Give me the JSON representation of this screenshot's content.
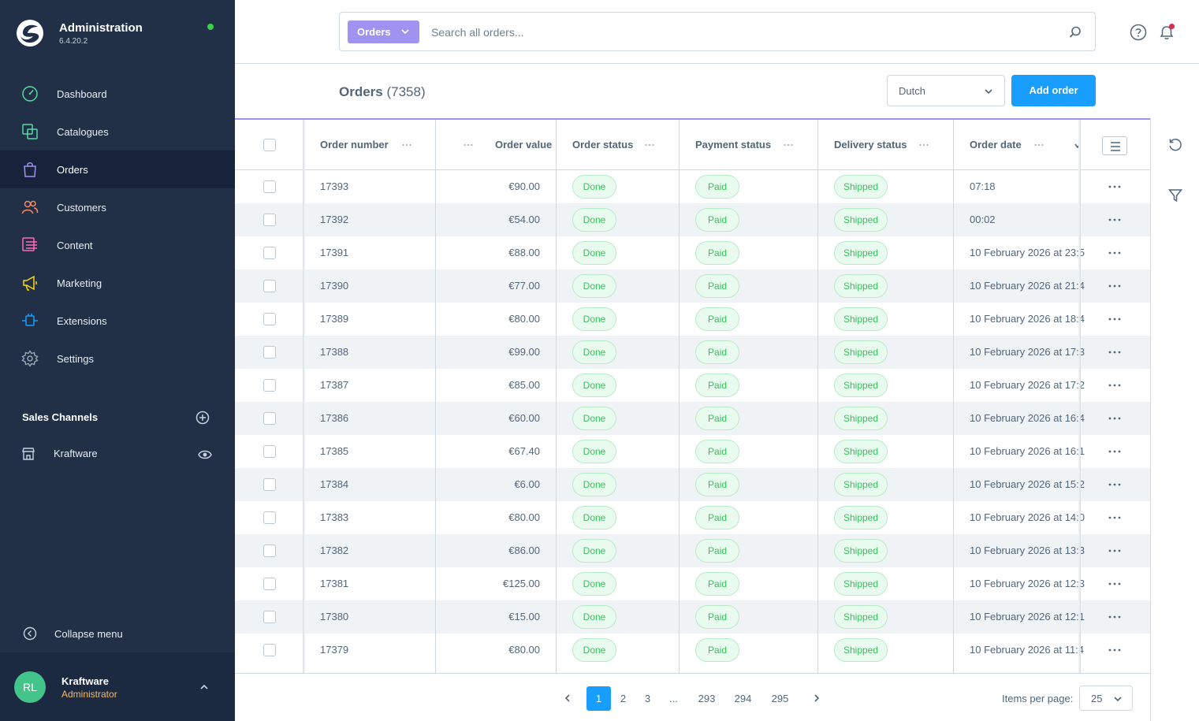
{
  "app": {
    "title": "Administration",
    "version": "6.4.20.2"
  },
  "nav": {
    "items": [
      {
        "label": "Dashboard",
        "icon": "dashboard-icon",
        "color": "#57d9a3"
      },
      {
        "label": "Catalogues",
        "icon": "catalogues-icon",
        "color": "#57d9a3"
      },
      {
        "label": "Orders",
        "icon": "orders-icon",
        "color": "#a092f0"
      },
      {
        "label": "Customers",
        "icon": "customers-icon",
        "color": "#f88962"
      },
      {
        "label": "Content",
        "icon": "content-icon",
        "color": "#ff68b4"
      },
      {
        "label": "Marketing",
        "icon": "marketing-icon",
        "color": "#ffd700"
      },
      {
        "label": "Extensions",
        "icon": "extensions-icon",
        "color": "#189eff"
      },
      {
        "label": "Settings",
        "icon": "settings-icon",
        "color": "#9aa8b5"
      }
    ],
    "active_index": 2
  },
  "sales_channels": {
    "header": "Sales Channels",
    "items": [
      {
        "label": "Kraftware"
      }
    ]
  },
  "collapse_label": "Collapse menu",
  "user": {
    "initials": "RL",
    "name": "Kraftware",
    "role": "Administrator"
  },
  "search": {
    "type_label": "Orders",
    "placeholder": "Search all orders...",
    "value": ""
  },
  "page": {
    "title": "Orders",
    "count": "(7358)"
  },
  "language_select": {
    "value": "Dutch"
  },
  "add_order_label": "Add order",
  "table": {
    "columns": [
      "Order number",
      "Order value",
      "Order status",
      "Payment status",
      "Delivery status",
      "Order date"
    ],
    "rows": [
      {
        "number": "17393",
        "value": "€90.00",
        "order_status": "Done",
        "payment_status": "Paid",
        "delivery_status": "Shipped",
        "date": "07:18"
      },
      {
        "number": "17392",
        "value": "€54.00",
        "order_status": "Done",
        "payment_status": "Paid",
        "delivery_status": "Shipped",
        "date": "00:02"
      },
      {
        "number": "17391",
        "value": "€88.00",
        "order_status": "Done",
        "payment_status": "Paid",
        "delivery_status": "Shipped",
        "date": "10 February 2026 at 23:5"
      },
      {
        "number": "17390",
        "value": "€77.00",
        "order_status": "Done",
        "payment_status": "Paid",
        "delivery_status": "Shipped",
        "date": "10 February 2026 at 21:4"
      },
      {
        "number": "17389",
        "value": "€80.00",
        "order_status": "Done",
        "payment_status": "Paid",
        "delivery_status": "Shipped",
        "date": "10 February 2026 at 18:4"
      },
      {
        "number": "17388",
        "value": "€99.00",
        "order_status": "Done",
        "payment_status": "Paid",
        "delivery_status": "Shipped",
        "date": "10 February 2026 at 17:3"
      },
      {
        "number": "17387",
        "value": "€85.00",
        "order_status": "Done",
        "payment_status": "Paid",
        "delivery_status": "Shipped",
        "date": "10 February 2026 at 17:2"
      },
      {
        "number": "17386",
        "value": "€60.00",
        "order_status": "Done",
        "payment_status": "Paid",
        "delivery_status": "Shipped",
        "date": "10 February 2026 at 16:4"
      },
      {
        "number": "17385",
        "value": "€67.40",
        "order_status": "Done",
        "payment_status": "Paid",
        "delivery_status": "Shipped",
        "date": "10 February 2026 at 16:1"
      },
      {
        "number": "17384",
        "value": "€6.00",
        "order_status": "Done",
        "payment_status": "Paid",
        "delivery_status": "Shipped",
        "date": "10 February 2026 at 15:2"
      },
      {
        "number": "17383",
        "value": "€80.00",
        "order_status": "Done",
        "payment_status": "Paid",
        "delivery_status": "Shipped",
        "date": "10 February 2026 at 14:0"
      },
      {
        "number": "17382",
        "value": "€86.00",
        "order_status": "Done",
        "payment_status": "Paid",
        "delivery_status": "Shipped",
        "date": "10 February 2026 at 13:3"
      },
      {
        "number": "17381",
        "value": "€125.00",
        "order_status": "Done",
        "payment_status": "Paid",
        "delivery_status": "Shipped",
        "date": "10 February 2026 at 12:3"
      },
      {
        "number": "17380",
        "value": "€15.00",
        "order_status": "Done",
        "payment_status": "Paid",
        "delivery_status": "Shipped",
        "date": "10 February 2026 at 12:1"
      },
      {
        "number": "17379",
        "value": "€80.00",
        "order_status": "Done",
        "payment_status": "Paid",
        "delivery_status": "Shipped",
        "date": "10 February 2026 at 11:4"
      }
    ]
  },
  "pagination": {
    "pages": [
      "1",
      "2",
      "3",
      "...",
      "293",
      "294",
      "295"
    ],
    "current": "1",
    "items_per_page_label": "Items per page:",
    "items_per_page": "25"
  },
  "colors": {
    "sidebar_bg": "#213046",
    "accent_purple": "#a092f0",
    "primary_blue": "#189eff",
    "status_green": "#37c15c",
    "avatar_green": "#42c48b",
    "role_orange": "#ffb75d"
  }
}
